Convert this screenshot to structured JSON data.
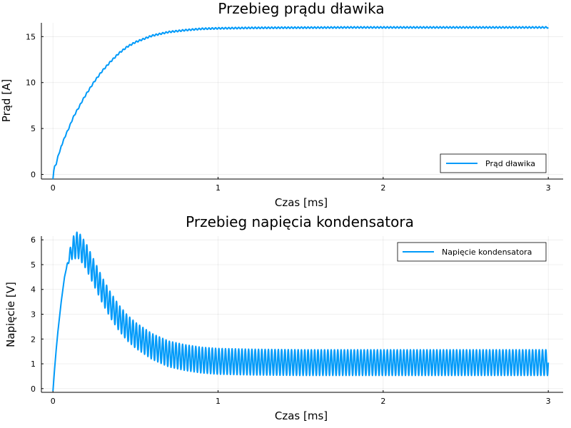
{
  "colors": {
    "series": "#009af9"
  },
  "chart_data": [
    {
      "type": "line",
      "title": "Przebieg prądu dławika",
      "xlabel": "Czas [ms]",
      "ylabel": "Prąd [A]",
      "xlim": [
        -0.07,
        3.09
      ],
      "ylim": [
        -0.5,
        16.5
      ],
      "xticks": [
        0,
        1,
        2,
        3
      ],
      "yticks": [
        0,
        5,
        10,
        15
      ],
      "grid": true,
      "legend_position": "bottom-right",
      "series": [
        {
          "name": "Prąd dławika",
          "x": [
            0,
            0.005,
            0.01,
            0.02,
            0.03,
            0.04,
            0.05,
            0.06,
            0.07,
            0.08,
            0.09,
            0.1,
            0.12,
            0.14,
            0.16,
            0.18,
            0.2,
            0.25,
            0.3,
            0.35,
            0.4,
            0.45,
            0.5,
            0.6,
            0.7,
            0.8,
            0.9,
            1.0,
            1.2,
            1.4,
            1.6,
            1.8,
            2.0,
            2.2,
            2.4,
            2.6,
            2.8,
            3.0
          ],
          "values": [
            -0.5,
            0.4,
            0.9,
            1.1,
            2.0,
            2.4,
            3.1,
            3.5,
            4.0,
            4.4,
            4.8,
            5.2,
            6.1,
            6.8,
            7.4,
            8.1,
            8.7,
            10.1,
            11.3,
            12.3,
            13.2,
            13.9,
            14.4,
            15.1,
            15.5,
            15.7,
            15.85,
            15.9,
            15.95,
            15.97,
            15.98,
            16.0,
            16.0,
            16.0,
            16.0,
            16.0,
            16.0,
            16.0
          ],
          "ripple_amplitude": 0.08
        }
      ]
    },
    {
      "type": "line",
      "title": "Przebieg napięcia kondensatora",
      "xlabel": "Czas [ms]",
      "ylabel": "Napięcie [V]",
      "xlim": [
        -0.07,
        3.09
      ],
      "ylim": [
        -0.15,
        6.15
      ],
      "xticks": [
        0,
        1,
        2,
        3
      ],
      "yticks": [
        0,
        1,
        2,
        3,
        4,
        5,
        6
      ],
      "grid": true,
      "legend_position": "top-right",
      "series": [
        {
          "name": "Napięcie kondensatora",
          "x": [
            0,
            0.01,
            0.02,
            0.03,
            0.04,
            0.05,
            0.06,
            0.07,
            0.08,
            0.1,
            0.12,
            0.14,
            0.16,
            0.2,
            0.25,
            0.3,
            0.35,
            0.4,
            0.45,
            0.5,
            0.6,
            0.7,
            0.8,
            0.9,
            1.0,
            1.2,
            1.5,
            2.0,
            2.5,
            3.0
          ],
          "values": [
            -0.1,
            0.8,
            1.6,
            2.3,
            2.9,
            3.5,
            4.0,
            4.5,
            4.8,
            5.35,
            5.65,
            5.8,
            5.75,
            5.35,
            4.65,
            3.95,
            3.35,
            2.85,
            2.45,
            2.15,
            1.7,
            1.4,
            1.25,
            1.15,
            1.1,
            1.07,
            1.05,
            1.05,
            1.05,
            1.05
          ],
          "ripple_amplitude": 0.52,
          "ripple_periods": 150
        }
      ]
    }
  ]
}
